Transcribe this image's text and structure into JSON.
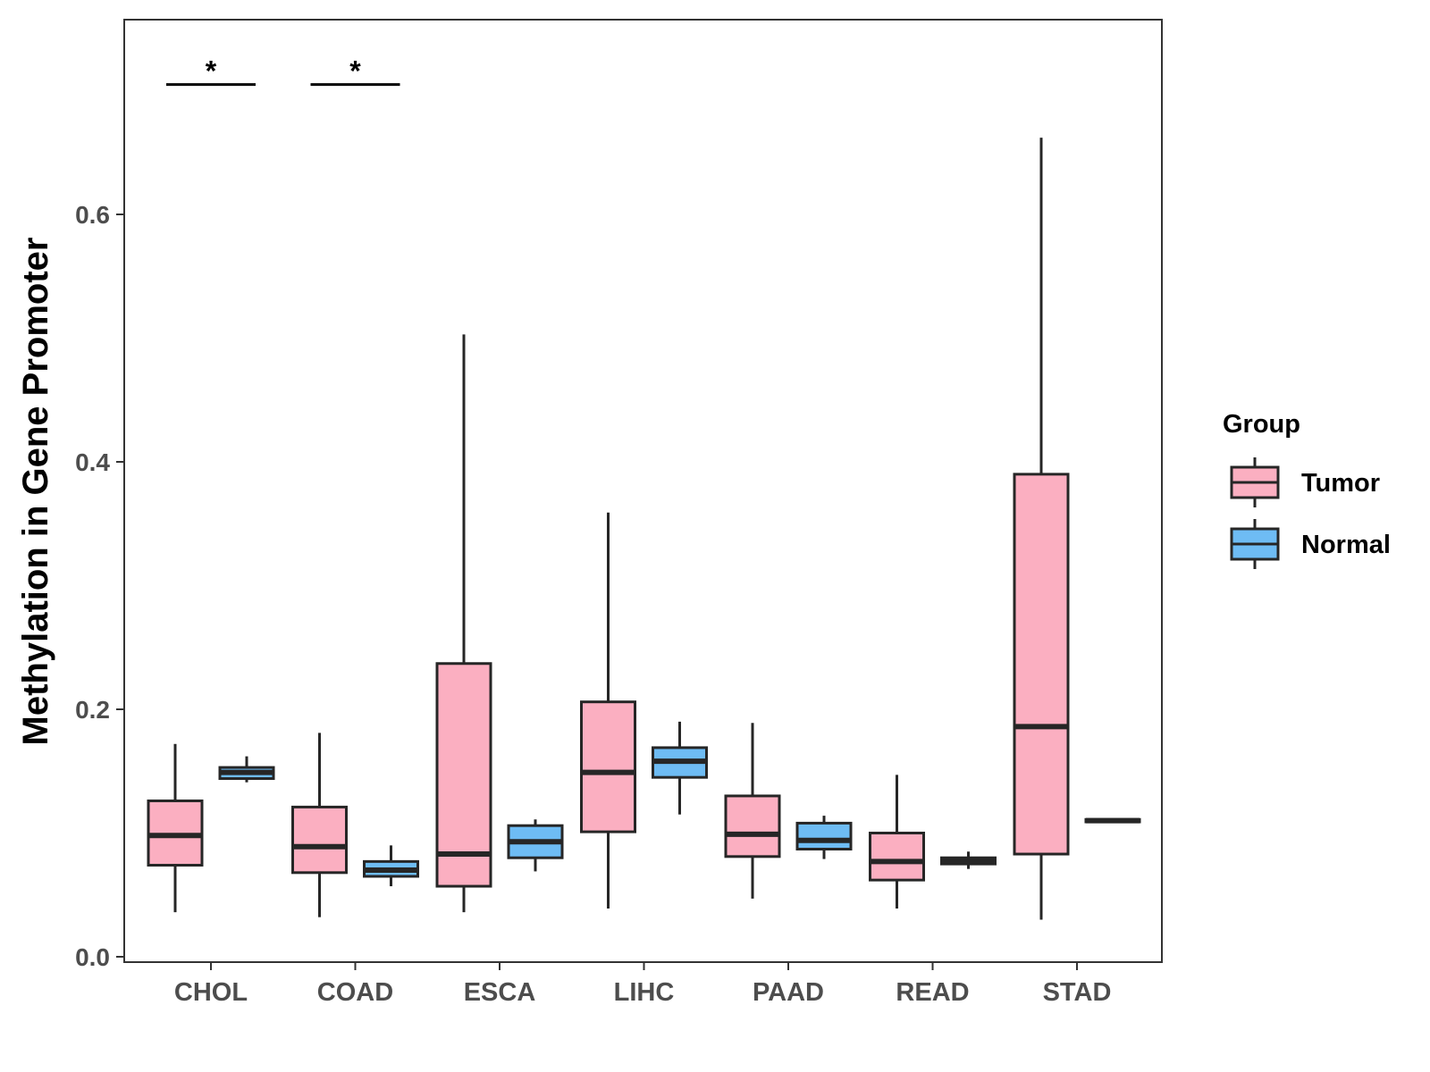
{
  "chart_data": {
    "type": "boxplot",
    "title": "",
    "xlabel": "",
    "ylabel": "Methylation in Gene Promoter",
    "ylim": [
      -0.005,
      0.755
    ],
    "yticks": [
      0.0,
      0.2,
      0.4,
      0.6
    ],
    "ytick_labels": [
      "0.0",
      "0.2",
      "0.4",
      "0.6"
    ],
    "categories": [
      "CHOL",
      "COAD",
      "ESCA",
      "LIHC",
      "PAAD",
      "READ",
      "STAD"
    ],
    "grid": false,
    "legend": {
      "title": "Group",
      "position": "right"
    },
    "colors": {
      "Tumor": "#fbafc1",
      "Normal": "#6ebcf4",
      "stroke": "#262626"
    },
    "series": [
      {
        "name": "Tumor",
        "boxes": [
          {
            "min": 0.036,
            "q1": 0.074,
            "median": 0.098,
            "q3": 0.126,
            "max": 0.172
          },
          {
            "min": 0.032,
            "q1": 0.068,
            "median": 0.089,
            "q3": 0.121,
            "max": 0.181
          },
          {
            "min": 0.036,
            "q1": 0.057,
            "median": 0.083,
            "q3": 0.237,
            "max": 0.503
          },
          {
            "min": 0.039,
            "q1": 0.101,
            "median": 0.149,
            "q3": 0.206,
            "max": 0.359
          },
          {
            "min": 0.047,
            "q1": 0.081,
            "median": 0.099,
            "q3": 0.13,
            "max": 0.189
          },
          {
            "min": 0.039,
            "q1": 0.062,
            "median": 0.077,
            "q3": 0.1,
            "max": 0.147
          },
          {
            "min": 0.03,
            "q1": 0.083,
            "median": 0.186,
            "q3": 0.39,
            "max": 0.662
          }
        ]
      },
      {
        "name": "Normal",
        "boxes": [
          {
            "min": 0.141,
            "q1": 0.144,
            "median": 0.149,
            "q3": 0.153,
            "max": 0.162
          },
          {
            "min": 0.057,
            "q1": 0.065,
            "median": 0.07,
            "q3": 0.077,
            "max": 0.09
          },
          {
            "min": 0.069,
            "q1": 0.08,
            "median": 0.093,
            "q3": 0.106,
            "max": 0.111
          },
          {
            "min": 0.115,
            "q1": 0.145,
            "median": 0.158,
            "q3": 0.169,
            "max": 0.19
          },
          {
            "min": 0.079,
            "q1": 0.087,
            "median": 0.094,
            "q3": 0.108,
            "max": 0.114
          },
          {
            "min": 0.071,
            "q1": 0.075,
            "median": 0.077,
            "q3": 0.08,
            "max": 0.085
          },
          {
            "min": 0.109,
            "q1": 0.109,
            "median": 0.11,
            "q3": 0.111,
            "max": 0.111
          }
        ]
      }
    ],
    "annotations": [
      {
        "category": "CHOL",
        "text": "*",
        "y": 0.705
      },
      {
        "category": "COAD",
        "text": "*",
        "y": 0.705
      }
    ]
  }
}
